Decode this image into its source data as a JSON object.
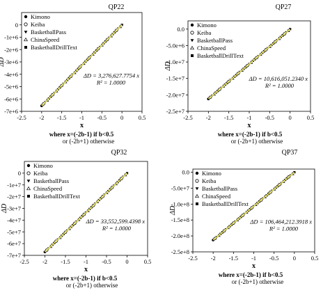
{
  "legend_entries": [
    "Kimono",
    "Keiba",
    "BasketballPass",
    "ChinaSpeed",
    "BasketballDrillText"
  ],
  "chart_data": [
    {
      "type": "scatter",
      "title": "QP22",
      "xlabel": "x",
      "ylabel": "ΔD",
      "xlim": [
        -2.5,
        0.5
      ],
      "ylim": [
        -7000000,
        1000000
      ],
      "xticks": [
        "-2.5",
        "-2",
        "-1.5",
        "-1",
        "-0.5",
        "0",
        "0.5"
      ],
      "yticks": [
        {
          "v": 0,
          "t": "0"
        },
        {
          "v": -1000000,
          "t": "-1e+6"
        },
        {
          "v": -2000000,
          "t": "-2e+6"
        },
        {
          "v": -3000000,
          "t": "-3e+6"
        },
        {
          "v": -4000000,
          "t": "-4e+6"
        },
        {
          "v": -5000000,
          "t": "-5e+6"
        },
        {
          "v": -6000000,
          "t": "-6e+6"
        },
        {
          "v": -7000000,
          "t": "-7e+6"
        }
      ],
      "fit_slope": 3276627.7754,
      "equation": "ΔD = 3,276,627.7754 x",
      "r2": "R² = 1.0000",
      "x_range": [
        -2.0,
        0.0
      ],
      "caption_line1": "where x=(-2b-1)  if b<0.5",
      "caption_line2": "or (-2b+1) otherwise",
      "series": [
        "Kimono",
        "Keiba",
        "BasketballPass",
        "ChinaSpeed",
        "BasketballDrillText"
      ]
    },
    {
      "type": "scatter",
      "title": "QP27",
      "xlabel": "x",
      "ylabel": "ΔD",
      "xlim": [
        -2.5,
        0.5
      ],
      "ylim": [
        -25000000,
        2500000
      ],
      "xticks": [
        "-2.5",
        "-2",
        "-1.5",
        "-1",
        "-0.5",
        "0",
        "0.5"
      ],
      "yticks": [
        {
          "v": 0,
          "t": "0.0"
        },
        {
          "v": -5000000,
          "t": "-5.0e+6"
        },
        {
          "v": -10000000,
          "t": "-1.0e+7"
        },
        {
          "v": -15000000,
          "t": "-1.5e+7"
        },
        {
          "v": -20000000,
          "t": "-2.0e+7"
        },
        {
          "v": -25000000,
          "t": "-2.5e+7"
        }
      ],
      "fit_slope": 10616051.234,
      "equation": "ΔD = 10,616,051.2340 x",
      "r2": "R² = 1.0000",
      "x_range": [
        -2.0,
        0.0
      ],
      "caption_line1": "where x=(-2b-1)  if b<0.5",
      "caption_line2": "or (-2b+1) otherwise",
      "series": [
        "Kimono",
        "Keiba",
        "BasketballPass",
        "ChinaSpeed",
        "BasketballDrillText"
      ]
    },
    {
      "type": "scatter",
      "title": "QP32",
      "xlabel": "x",
      "ylabel": "ΔD",
      "xlim": [
        -2.5,
        0.5
      ],
      "ylim": [
        -70000000,
        10000000
      ],
      "xticks": [
        "-2.5",
        "-2",
        "-1.5",
        "-1",
        "-0.5",
        "0",
        "0.5"
      ],
      "yticks": [
        {
          "v": 0,
          "t": "0"
        },
        {
          "v": -10000000,
          "t": "-1e+7"
        },
        {
          "v": -20000000,
          "t": "-2e+7"
        },
        {
          "v": -30000000,
          "t": "-3e+7"
        },
        {
          "v": -40000000,
          "t": "-4e+7"
        },
        {
          "v": -50000000,
          "t": "-5e+7"
        },
        {
          "v": -60000000,
          "t": "-6e+7"
        },
        {
          "v": -70000000,
          "t": "-7e+7"
        }
      ],
      "fit_slope": 33552599.4398,
      "equation": "ΔD = 33,552,599.4398 x",
      "r2": "R² = 1.0000",
      "x_range": [
        -2.0,
        0.0
      ],
      "caption_line1": "where x=(-2b-1)  if b<0.5",
      "caption_line2": "or (-2b+1) otherwise",
      "series": [
        "Kimono",
        "Keiba",
        "BasketballPass",
        "ChinaSpeed",
        "BasketballDrillText"
      ]
    },
    {
      "type": "scatter",
      "title": "QP37",
      "xlabel": "x",
      "ylabel": "ΔD",
      "xlim": [
        -2.5,
        0.5
      ],
      "ylim": [
        -250000000,
        10000000
      ],
      "xticks": [
        "-2.5",
        "-2",
        "-1.5",
        "-1",
        "-0.5",
        "0",
        "0.5"
      ],
      "yticks": [
        {
          "v": 0,
          "t": "0.0"
        },
        {
          "v": -50000000,
          "t": "-5.0e+7"
        },
        {
          "v": -100000000,
          "t": "-1.0e+8"
        },
        {
          "v": -150000000,
          "t": "-1.5e+8"
        },
        {
          "v": -200000000,
          "t": "-2.0e+8"
        },
        {
          "v": -250000000,
          "t": "-2.5e+8"
        }
      ],
      "fit_slope": 106464212.3918,
      "equation": "ΔD = 106,464,212.3918 x",
      "r2": "R² = 1.0000",
      "x_range": [
        -2.0,
        0.0
      ],
      "caption_line1": "where x=(-2b-1)  if b<0.5",
      "caption_line2": "or (-2b+1) otherwise",
      "series": [
        "Kimono",
        "Keiba",
        "BasketballPass",
        "ChinaSpeed",
        "BasketballDrillText"
      ]
    }
  ]
}
